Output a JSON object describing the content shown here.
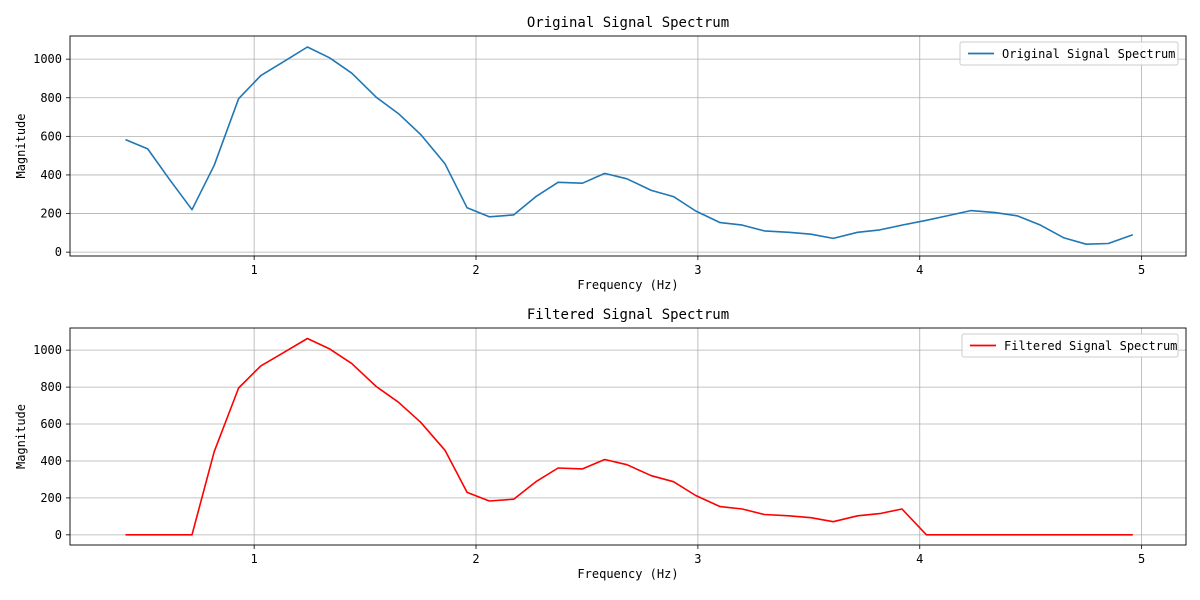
{
  "chart_data": [
    {
      "type": "line",
      "title": "Original Signal Spectrum",
      "xlabel": "Frequency (Hz)",
      "ylabel": "Magnitude",
      "xlim": [
        0.17,
        5.2
      ],
      "ylim": [
        -20,
        1120
      ],
      "xticks": [
        "1",
        "2",
        "3",
        "4",
        "5"
      ],
      "yticks": [
        "0",
        "200",
        "400",
        "600",
        "800",
        "1000"
      ],
      "grid": true,
      "legend_position": "top-right",
      "series": [
        {
          "name": "Original Signal Spectrum",
          "color": "#1f77b4",
          "x": [
            0.42,
            0.52,
            0.62,
            0.72,
            0.82,
            0.93,
            1.03,
            1.13,
            1.24,
            1.34,
            1.44,
            1.55,
            1.65,
            1.75,
            1.86,
            1.96,
            2.06,
            2.17,
            2.27,
            2.37,
            2.48,
            2.58,
            2.68,
            2.79,
            2.89,
            2.99,
            3.1,
            3.2,
            3.3,
            3.41,
            3.51,
            3.61,
            3.72,
            3.82,
            3.92,
            4.03,
            4.13,
            4.23,
            4.34,
            4.44,
            4.54,
            4.65,
            4.75,
            4.85,
            4.96
          ],
          "y": [
            583,
            535,
            375,
            220,
            450,
            795,
            915,
            985,
            1063,
            1007,
            927,
            803,
            718,
            610,
            458,
            230,
            183,
            193,
            288,
            362,
            357,
            408,
            380,
            320,
            288,
            213,
            153,
            140,
            110,
            103,
            93,
            71,
            103,
            115,
            140,
            165,
            190,
            215,
            205,
            188,
            142,
            74,
            41,
            45,
            90
          ]
        }
      ]
    },
    {
      "type": "line",
      "title": "Filtered Signal Spectrum",
      "xlabel": "Frequency (Hz)",
      "ylabel": "Magnitude",
      "xlim": [
        0.17,
        5.2
      ],
      "ylim": [
        -55,
        1120
      ],
      "xticks": [
        "1",
        "2",
        "3",
        "4",
        "5"
      ],
      "yticks": [
        "0",
        "200",
        "400",
        "600",
        "800",
        "1000"
      ],
      "grid": true,
      "legend_position": "top-right",
      "series": [
        {
          "name": "Filtered Signal Spectrum",
          "color": "#ff0000",
          "x": [
            0.42,
            0.52,
            0.62,
            0.72,
            0.82,
            0.93,
            1.03,
            1.13,
            1.24,
            1.34,
            1.44,
            1.55,
            1.65,
            1.75,
            1.86,
            1.96,
            2.06,
            2.17,
            2.27,
            2.37,
            2.48,
            2.58,
            2.68,
            2.79,
            2.89,
            2.99,
            3.1,
            3.2,
            3.3,
            3.41,
            3.51,
            3.61,
            3.72,
            3.82,
            3.92,
            4.03,
            4.13,
            4.23,
            4.34,
            4.44,
            4.54,
            4.65,
            4.75,
            4.85,
            4.96
          ],
          "y": [
            0,
            0,
            0,
            0,
            450,
            795,
            915,
            985,
            1063,
            1007,
            927,
            803,
            718,
            610,
            458,
            230,
            183,
            193,
            288,
            362,
            357,
            408,
            380,
            320,
            288,
            213,
            153,
            140,
            110,
            103,
            93,
            71,
            103,
            115,
            140,
            0,
            0,
            0,
            0,
            0,
            0,
            0,
            0,
            0,
            0
          ]
        }
      ]
    }
  ]
}
